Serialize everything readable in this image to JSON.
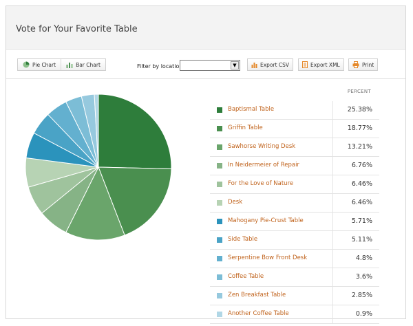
{
  "title": "Vote for Your Favorite Table",
  "toolbar": {
    "pie_label": "Pie Chart",
    "bar_label": "Bar Chart",
    "filter_label": "Filter by location",
    "filter_value": "",
    "export_csv": "Export CSV",
    "export_xml": "Export XML",
    "print": "Print"
  },
  "legend_header": "PERCENT",
  "chart_data": {
    "type": "pie",
    "title": "Vote for Your Favorite Table",
    "slices": [
      {
        "label": "Baptismal Table",
        "value": 25.38,
        "display": "25.38%",
        "color": "#2e7d3b"
      },
      {
        "label": "Griffin Table",
        "value": 18.77,
        "display": "18.77%",
        "color": "#4a8f4f"
      },
      {
        "label": "Sawhorse Writing Desk",
        "value": 13.21,
        "display": "13.21%",
        "color": "#6aa56b"
      },
      {
        "label": "In Neidermeier of Repair",
        "value": 6.76,
        "display": "6.76%",
        "color": "#86b386"
      },
      {
        "label": "For the Love of Nature",
        "value": 6.46,
        "display": "6.46%",
        "color": "#9fc39d"
      },
      {
        "label": "Desk",
        "value": 6.46,
        "display": "6.46%",
        "color": "#b7d3b4"
      },
      {
        "label": "Mahogany Pie-Crust Table",
        "value": 5.71,
        "display": "5.71%",
        "color": "#2b93bc"
      },
      {
        "label": "Side Table",
        "value": 5.11,
        "display": "5.11%",
        "color": "#4aa3c6"
      },
      {
        "label": "Serpentine Bow Front Desk",
        "value": 4.8,
        "display": "4.8%",
        "color": "#63b0cf"
      },
      {
        "label": "Coffee Table",
        "value": 3.6,
        "display": "3.6%",
        "color": "#7cbdd6"
      },
      {
        "label": "Zen Breakfast Table",
        "value": 2.85,
        "display": "2.85%",
        "color": "#96c9de"
      },
      {
        "label": "Another Coffee Table",
        "value": 0.9,
        "display": "0.9%",
        "color": "#b1d7e6"
      }
    ]
  }
}
